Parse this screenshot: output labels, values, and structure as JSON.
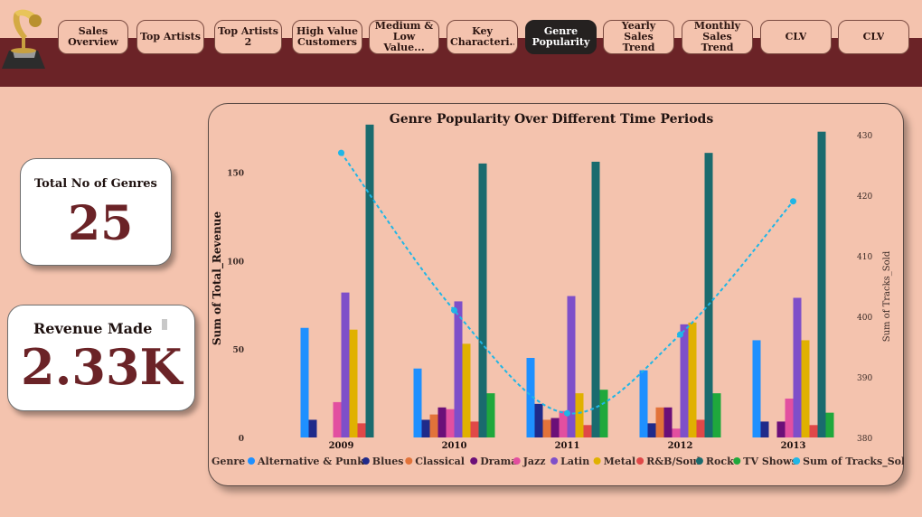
{
  "nav": {
    "tabs": [
      {
        "label": "Sales Overview",
        "active": false
      },
      {
        "label": "Top Artists",
        "active": false
      },
      {
        "label": "Top Artists 2",
        "active": false
      },
      {
        "label": "High Value Customers",
        "active": false
      },
      {
        "label": "Medium & Low Value...",
        "active": false
      },
      {
        "label": "Key Characteri...",
        "active": false
      },
      {
        "label": "Genre Popularity",
        "active": true
      },
      {
        "label": "Yearly Sales Trend",
        "active": false
      },
      {
        "label": "Monthly Sales Trend",
        "active": false
      },
      {
        "label": "CLV",
        "active": false
      },
      {
        "label": "CLV",
        "active": false
      }
    ],
    "logo_icon": "gramophone-trophy-icon"
  },
  "cards": {
    "genres": {
      "label": "Total No of Genres",
      "value": "25"
    },
    "revenue": {
      "label": "Revenue Made",
      "value": "2.33K"
    }
  },
  "colors": {
    "band": "#6b2327",
    "background": "#f4c3ae",
    "accent_value": "#6b2327"
  },
  "chart_data": {
    "type": "bar",
    "title": "Genre Popularity Over Different Time Periods",
    "xlabel": "",
    "ylabel": "Sum of Total_Revenue",
    "y2label": "Sum of Tracks_Sold",
    "categories": [
      "2009",
      "2010",
      "2011",
      "2012",
      "2013"
    ],
    "ylim": [
      0,
      180
    ],
    "yticks": [
      0,
      50,
      100,
      150
    ],
    "y2lim": [
      380,
      430
    ],
    "y2ticks": [
      380,
      390,
      400,
      410,
      420,
      430
    ],
    "legend_title": "Genre",
    "legend_position": "bottom",
    "series": [
      {
        "name": "Alternative & Punk",
        "color": "#1e90ff",
        "values": [
          62,
          39,
          45,
          38,
          55
        ]
      },
      {
        "name": "Blues",
        "color": "#1f2a8a",
        "values": [
          10,
          10,
          19,
          8,
          9
        ]
      },
      {
        "name": "Classical",
        "color": "#e2733a",
        "values": [
          0,
          13,
          10,
          17,
          0
        ]
      },
      {
        "name": "Drama",
        "color": "#6b0f78",
        "values": [
          0,
          17,
          11,
          17,
          9
        ]
      },
      {
        "name": "Jazz",
        "color": "#e24fa0",
        "values": [
          20,
          16,
          15,
          5,
          22
        ]
      },
      {
        "name": "Latin",
        "color": "#7e4fc9",
        "values": [
          82,
          77,
          80,
          64,
          79
        ]
      },
      {
        "name": "Metal",
        "color": "#e0b100",
        "values": [
          61,
          53,
          25,
          65,
          55
        ]
      },
      {
        "name": "R&B/Soul",
        "color": "#e04848",
        "values": [
          8,
          9,
          7,
          10,
          7
        ]
      },
      {
        "name": "Rock",
        "color": "#1a6b6e",
        "values": [
          177,
          155,
          156,
          161,
          173
        ]
      },
      {
        "name": "TV Shows",
        "color": "#1fa83c",
        "values": [
          0,
          25,
          27,
          25,
          14
        ]
      }
    ],
    "line": {
      "name": "Sum of Tracks_Sold",
      "color": "#1fb6e6",
      "style": "dashed",
      "values": [
        427,
        401,
        384,
        397,
        419
      ]
    }
  }
}
